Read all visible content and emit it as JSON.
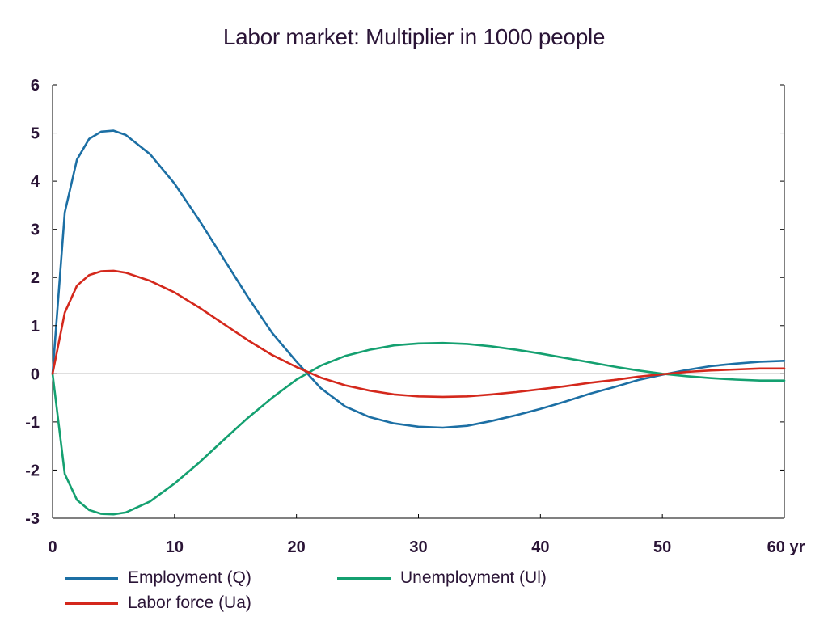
{
  "chart_data": {
    "type": "line",
    "title": "Labor market: Multiplier in 1000 people",
    "xlabel": "",
    "ylabel": "",
    "x_unit_label": "yr",
    "xlim": [
      0,
      60
    ],
    "ylim": [
      -3,
      6
    ],
    "xticks": [
      0,
      10,
      20,
      30,
      40,
      50,
      60
    ],
    "yticks": [
      -3,
      -2,
      -1,
      0,
      1,
      2,
      3,
      4,
      5,
      6
    ],
    "zero_line": true,
    "grid": false,
    "legend_position": "bottom",
    "x": [
      0,
      1,
      2,
      3,
      4,
      5,
      6,
      8,
      10,
      12,
      14,
      16,
      18,
      20,
      22,
      24,
      26,
      28,
      30,
      32,
      34,
      36,
      38,
      40,
      42,
      44,
      46,
      48,
      50,
      52,
      54,
      56,
      58,
      60
    ],
    "series": [
      {
        "name": "Employment (Q)",
        "color": "#1c6fa4",
        "values": [
          0,
          3.35,
          4.45,
          4.88,
          5.03,
          5.05,
          4.96,
          4.56,
          3.95,
          3.2,
          2.4,
          1.6,
          0.85,
          0.25,
          -0.3,
          -0.68,
          -0.9,
          -1.03,
          -1.1,
          -1.12,
          -1.08,
          -0.98,
          -0.86,
          -0.73,
          -0.58,
          -0.42,
          -0.28,
          -0.13,
          -0.02,
          0.08,
          0.16,
          0.21,
          0.25,
          0.27
        ]
      },
      {
        "name": "Unemployment (Ul)",
        "color": "#14a070",
        "values": [
          0,
          -2.08,
          -2.62,
          -2.83,
          -2.91,
          -2.92,
          -2.88,
          -2.65,
          -2.28,
          -1.85,
          -1.38,
          -0.92,
          -0.5,
          -0.12,
          0.17,
          0.37,
          0.5,
          0.59,
          0.63,
          0.64,
          0.62,
          0.57,
          0.5,
          0.42,
          0.33,
          0.24,
          0.15,
          0.07,
          0.0,
          -0.05,
          -0.09,
          -0.12,
          -0.14,
          -0.14
        ]
      },
      {
        "name": "Labor force (Ua)",
        "color": "#d4281c",
        "values": [
          0,
          1.27,
          1.83,
          2.05,
          2.13,
          2.14,
          2.1,
          1.93,
          1.69,
          1.38,
          1.04,
          0.7,
          0.39,
          0.14,
          -0.08,
          -0.24,
          -0.35,
          -0.43,
          -0.47,
          -0.48,
          -0.47,
          -0.43,
          -0.38,
          -0.32,
          -0.26,
          -0.19,
          -0.13,
          -0.06,
          -0.01,
          0.04,
          0.07,
          0.09,
          0.11,
          0.11
        ]
      }
    ]
  }
}
